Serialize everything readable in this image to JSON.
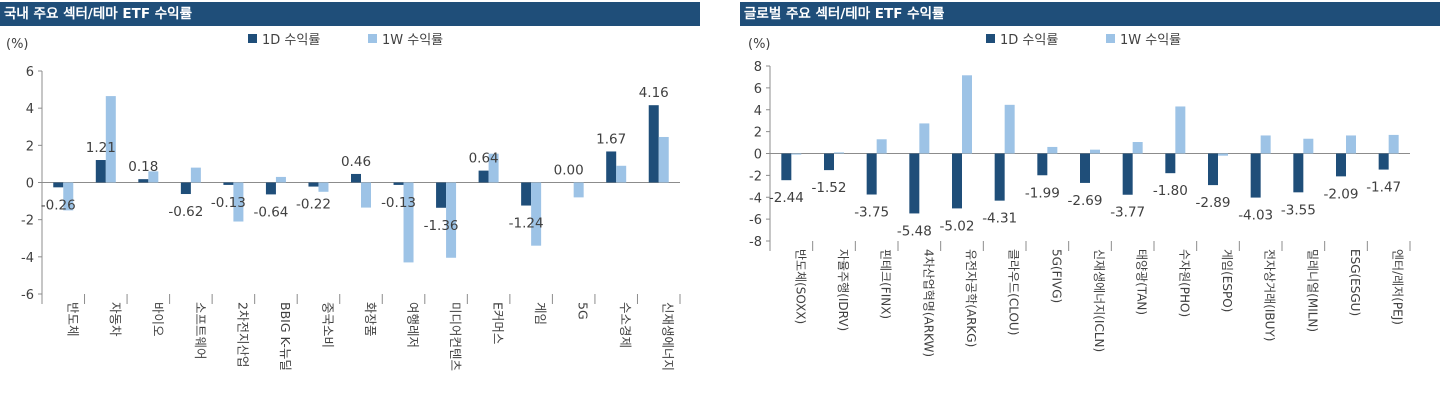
{
  "colors": {
    "header_bg": "#1f4e79",
    "series_1d": "#1f4e79",
    "series_1w": "#9dc3e6"
  },
  "chart_data": [
    {
      "type": "bar",
      "title": "국내 주요 섹터/테마 ETF 수익률",
      "unit_label": "(%)",
      "ylim": [
        -6,
        6
      ],
      "yticks": [
        6,
        4,
        2,
        0,
        -2,
        -4,
        -6
      ],
      "categories": [
        "반도체",
        "자동차",
        "바이오",
        "소프트웨어",
        "2차전지산업",
        "BBIG K-뉴딜",
        "중국소비",
        "화장품",
        "여행레저",
        "미디어컨텐츠",
        "E커머스",
        "게임",
        "5G",
        "수소경제",
        "신재생에너지"
      ],
      "series": [
        {
          "name": "1D 수익률",
          "values": [
            -0.26,
            1.21,
            0.18,
            -0.62,
            -0.13,
            -0.64,
            -0.22,
            0.46,
            -0.13,
            -1.36,
            0.64,
            -1.24,
            0.0,
            1.67,
            4.16
          ]
        },
        {
          "name": "1W 수익률",
          "values": [
            -1.5,
            4.65,
            0.6,
            0.8,
            -2.1,
            0.3,
            -0.5,
            -1.35,
            -4.3,
            -4.05,
            1.55,
            -3.4,
            -0.8,
            0.9,
            2.45
          ]
        }
      ],
      "data_labels": [
        "-0.26",
        "1.21",
        "0.18",
        "-0.62",
        "-0.13",
        "-0.64",
        "-0.22",
        "0.46",
        "-0.13",
        "-1.36",
        "0.64",
        "-1.24",
        "0.00",
        "1.67",
        "4.16"
      ],
      "legend": "top-center",
      "grid": false
    },
    {
      "type": "bar",
      "title": "글로벌 주요 섹터/테마 ETF 수익률",
      "unit_label": "(%)",
      "ylim": [
        -8,
        8
      ],
      "yticks": [
        8,
        6,
        4,
        2,
        0,
        -2,
        -4,
        -6,
        -8
      ],
      "categories": [
        "반도체(SOXX)",
        "자율주행(IDRV)",
        "핀테크(FINX)",
        "4차산업혁명(ARKW)",
        "유전자공학(ARKG)",
        "클라우드(CLOU)",
        "5G(FIVG)",
        "신재생에너지(ICLN)",
        "태양광(TAN)",
        "수자원(PHO)",
        "게임(ESPO)",
        "전자상거래(IBUY)",
        "밀레니얼(MILN)",
        "ESG(ESGU)",
        "엔터/레저(PEJ)"
      ],
      "series": [
        {
          "name": "1D 수익률",
          "values": [
            -2.44,
            -1.52,
            -3.75,
            -5.48,
            -5.02,
            -4.31,
            -1.99,
            -2.69,
            -3.77,
            -1.8,
            -2.89,
            -4.03,
            -3.55,
            -2.09,
            -1.47
          ]
        },
        {
          "name": "1W 수익률",
          "values": [
            -0.1,
            0.1,
            1.3,
            2.75,
            7.15,
            4.45,
            0.6,
            0.35,
            1.05,
            4.3,
            -0.2,
            1.65,
            1.35,
            1.65,
            1.7
          ]
        }
      ],
      "data_labels": [
        "-2.44",
        "-1.52",
        "-3.75",
        "-5.48",
        "-5.02",
        "-4.31",
        "-1.99",
        "-2.69",
        "-3.77",
        "-1.80",
        "-2.89",
        "-4.03",
        "-3.55",
        "-2.09",
        "-1.47"
      ],
      "legend": "top-center",
      "grid": false
    }
  ]
}
